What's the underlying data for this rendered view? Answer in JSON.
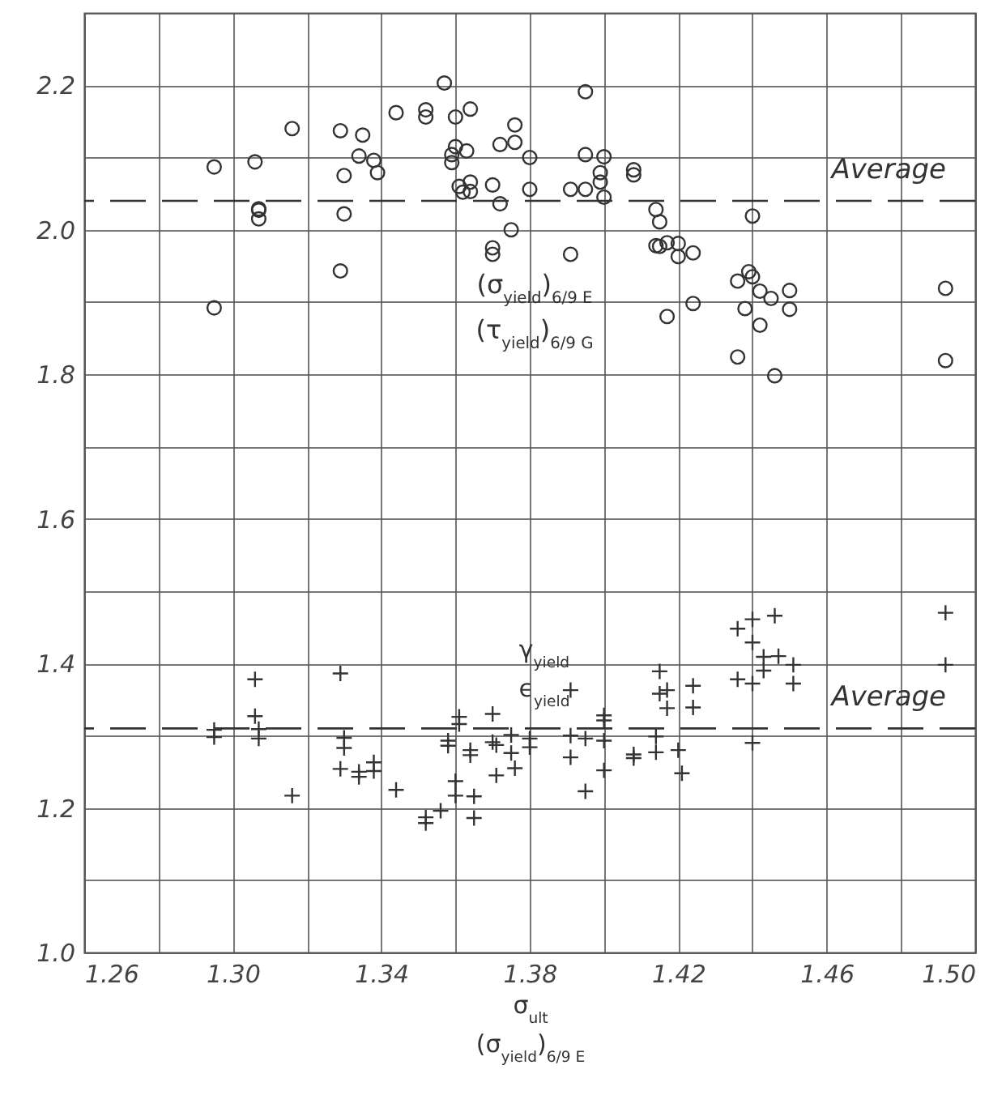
{
  "chart_data": {
    "type": "scatter",
    "xlabel": "σ$_{ult}$\n(σ$_{yield}$)$_{6/9 E}$",
    "xlim": [
      1.26,
      1.5
    ],
    "xticks": [
      1.26,
      {
        "value": 1.28,
        "label": null
      },
      {
        "value": 1.3,
        "label": "1.30"
      },
      {
        "value": 1.32,
        "label": null
      },
      1.34,
      {
        "value": 1.36,
        "label": null
      },
      1.38,
      {
        "value": 1.4,
        "label": null
      },
      1.42,
      {
        "value": 1.44,
        "label": null
      },
      1.46,
      {
        "value": 1.48,
        "label": null
      },
      {
        "value": 1.5,
        "label": "1.50"
      }
    ],
    "ylim": [
      1.0,
      2.3
    ],
    "yticks": [
      {
        "value": 1,
        "label": "1.0"
      },
      {
        "value": 1.1,
        "label": null
      },
      1.2,
      {
        "value": 1.3,
        "label": null
      },
      1.4,
      {
        "value": 1.5,
        "label": null
      },
      1.6,
      {
        "value": 1.7,
        "label": null
      },
      1.8,
      {
        "value": 1.9,
        "label": null
      },
      {
        "value": 2,
        "label": "2.0"
      },
      {
        "value": 2.1,
        "label": null
      },
      2.2
    ],
    "grid": true,
    "legend": false,
    "ref_lines": [
      {
        "axis": "y",
        "value": 2.04,
        "label": "Average",
        "line_style": "dashed",
        "color": "#333333"
      },
      {
        "axis": "y",
        "value": 1.31,
        "label": "Average",
        "line_style": "dashed",
        "color": "#333333"
      }
    ],
    "series": [
      {
        "name": "(σ$_{yield}$)$_{6/9 E}$\n(τ$_{yield}$)$_{6/9 G}$",
        "color": "#333333",
        "marker": "circle",
        "x": [
          1.295,
          1.295,
          1.306,
          1.307,
          1.307,
          1.307,
          1.316,
          1.329,
          1.335,
          1.334,
          1.338,
          1.339,
          1.33,
          1.33,
          1.329,
          1.344,
          1.352,
          1.352,
          1.357,
          1.36,
          1.364,
          1.36,
          1.359,
          1.359,
          1.363,
          1.361,
          1.362,
          1.364,
          1.364,
          1.37,
          1.372,
          1.376,
          1.376,
          1.372,
          1.375,
          1.37,
          1.37,
          1.38,
          1.38,
          1.391,
          1.395,
          1.395,
          1.395,
          1.4,
          1.399,
          1.399,
          1.4,
          1.391,
          1.408,
          1.408,
          1.414,
          1.415,
          1.414,
          1.415,
          1.417,
          1.42,
          1.42,
          1.424,
          1.417,
          1.424,
          1.44,
          1.436,
          1.439,
          1.44,
          1.442,
          1.445,
          1.45,
          1.45,
          1.438,
          1.442,
          1.436,
          1.446,
          1.492,
          1.492
        ],
        "values": [
          2.087,
          1.892,
          2.094,
          2.027,
          2.029,
          2.015,
          2.14,
          2.137,
          2.131,
          2.102,
          2.096,
          2.079,
          2.075,
          2.022,
          1.943,
          2.162,
          2.166,
          2.156,
          2.203,
          2.156,
          2.167,
          2.115,
          2.104,
          2.093,
          2.109,
          2.06,
          2.052,
          2.066,
          2.053,
          2.062,
          2.118,
          2.145,
          2.121,
          2.036,
          2.0,
          1.975,
          1.966,
          2.1,
          2.056,
          2.056,
          2.056,
          2.191,
          2.104,
          2.101,
          2.079,
          2.066,
          2.045,
          1.966,
          2.083,
          2.076,
          2.028,
          2.011,
          1.978,
          1.977,
          1.982,
          1.981,
          1.963,
          1.968,
          1.88,
          1.898,
          2.019,
          1.929,
          1.942,
          1.935,
          1.915,
          1.905,
          1.916,
          1.89,
          1.891,
          1.868,
          1.824,
          1.798,
          1.919,
          1.819
        ]
      },
      {
        "name": "γ$_{yield}$\nϵ$_{yield}$",
        "color": "#333333",
        "marker": "cross",
        "x": [
          1.295,
          1.295,
          1.306,
          1.306,
          1.307,
          1.307,
          1.316,
          1.329,
          1.33,
          1.33,
          1.329,
          1.334,
          1.334,
          1.338,
          1.338,
          1.344,
          1.352,
          1.352,
          1.356,
          1.36,
          1.36,
          1.365,
          1.365,
          1.361,
          1.361,
          1.358,
          1.358,
          1.364,
          1.364,
          1.37,
          1.37,
          1.371,
          1.375,
          1.375,
          1.376,
          1.38,
          1.38,
          1.371,
          1.391,
          1.391,
          1.391,
          1.395,
          1.395,
          1.4,
          1.4,
          1.4,
          1.4,
          1.408,
          1.408,
          1.415,
          1.415,
          1.417,
          1.417,
          1.414,
          1.414,
          1.42,
          1.421,
          1.424,
          1.424,
          1.436,
          1.44,
          1.446,
          1.44,
          1.443,
          1.443,
          1.447,
          1.451,
          1.451,
          1.436,
          1.44,
          1.44,
          1.492,
          1.492
        ],
        "values": [
          1.308,
          1.298,
          1.378,
          1.327,
          1.309,
          1.296,
          1.217,
          1.386,
          1.297,
          1.283,
          1.254,
          1.25,
          1.243,
          1.263,
          1.251,
          1.225,
          1.187,
          1.179,
          1.196,
          1.237,
          1.217,
          1.216,
          1.186,
          1.326,
          1.316,
          1.293,
          1.286,
          1.28,
          1.273,
          1.33,
          1.291,
          1.245,
          1.301,
          1.276,
          1.255,
          1.296,
          1.284,
          1.287,
          1.363,
          1.3,
          1.27,
          1.296,
          1.223,
          1.328,
          1.321,
          1.293,
          1.252,
          1.274,
          1.269,
          1.389,
          1.358,
          1.363,
          1.338,
          1.299,
          1.277,
          1.28,
          1.248,
          1.369,
          1.339,
          1.448,
          1.461,
          1.466,
          1.429,
          1.409,
          1.39,
          1.41,
          1.398,
          1.372,
          1.378,
          1.372,
          1.29,
          1.47,
          1.398
        ]
      }
    ]
  }
}
